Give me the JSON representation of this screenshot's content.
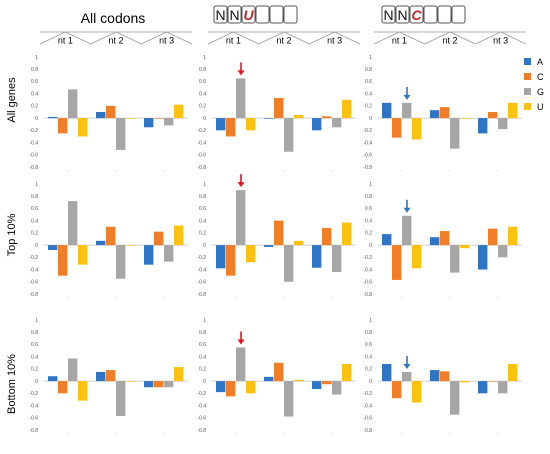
{
  "header": {
    "col1_title": "All codons",
    "col2_codon": [
      "N",
      "N",
      "U",
      "",
      "",
      ""
    ],
    "col3_codon": [
      "N",
      "N",
      "C",
      "",
      "",
      ""
    ]
  },
  "nt_labels": [
    "nt 1",
    "nt 2",
    "nt 3"
  ],
  "row_labels": [
    "All genes",
    "Top 10%",
    "Bottom 10%"
  ],
  "y_ticks": [
    "1",
    "0.8",
    "0.6",
    "0.4",
    "0.2",
    "0",
    "-0.2",
    "-0.4",
    "-0.6",
    "-0.8"
  ],
  "legend": [
    {
      "label": "A",
      "color": "#2e75c6"
    },
    {
      "label": "C",
      "color": "#f27d27"
    },
    {
      "label": "G",
      "color": "#a6a6a6"
    },
    {
      "label": "U",
      "color": "#fdc10f"
    }
  ],
  "colors": {
    "A": "#2e75c6",
    "C": "#f27d27",
    "G": "#a6a6a6",
    "U": "#fdc10f",
    "arrow_red": "#e0141e",
    "arrow_blue": "#2e75c6"
  },
  "chart_data": {
    "type": "bar",
    "grid_layout": {
      "rows": 3,
      "cols": 3
    },
    "series_names": [
      "A",
      "C",
      "G",
      "U"
    ],
    "categories": [
      "nt 1",
      "nt 2",
      "nt 3"
    ],
    "ylim": [
      -0.8,
      1.0
    ],
    "panels": [
      {
        "row": "All genes",
        "col": "All codons",
        "values": [
          [
            0.02,
            -0.25,
            0.47,
            -0.3
          ],
          [
            0.1,
            0.2,
            -0.52,
            0.0
          ],
          [
            -0.15,
            -0.01,
            -0.12,
            0.22
          ]
        ]
      },
      {
        "row": "All genes",
        "col": "NNU",
        "arrow": {
          "color": "red",
          "nt": 1
        },
        "values": [
          [
            -0.2,
            -0.3,
            0.65,
            -0.2
          ],
          [
            -0.01,
            0.33,
            -0.55,
            0.05
          ],
          [
            -0.2,
            0.03,
            -0.15,
            0.3
          ]
        ]
      },
      {
        "row": "All genes",
        "col": "NNC",
        "arrow": {
          "color": "blue",
          "nt": 1
        },
        "values": [
          [
            0.25,
            -0.32,
            0.25,
            -0.35
          ],
          [
            0.13,
            0.18,
            -0.5,
            0.0
          ],
          [
            -0.25,
            0.1,
            -0.18,
            0.25
          ]
        ]
      },
      {
        "row": "Top 10%",
        "col": "All codons",
        "values": [
          [
            -0.08,
            -0.5,
            0.72,
            -0.32
          ],
          [
            0.07,
            0.3,
            -0.55,
            0.0
          ],
          [
            -0.32,
            0.22,
            -0.27,
            0.32
          ]
        ]
      },
      {
        "row": "Top 10%",
        "col": "NNU",
        "arrow": {
          "color": "red",
          "nt": 1
        },
        "values": [
          [
            -0.38,
            -0.5,
            0.9,
            -0.28
          ],
          [
            -0.03,
            0.4,
            -0.6,
            0.07
          ],
          [
            -0.37,
            0.28,
            -0.44,
            0.37
          ]
        ]
      },
      {
        "row": "Top 10%",
        "col": "NNC",
        "arrow": {
          "color": "blue",
          "nt": 1
        },
        "values": [
          [
            0.18,
            -0.57,
            0.48,
            -0.38
          ],
          [
            0.13,
            0.23,
            -0.45,
            -0.05
          ],
          [
            -0.4,
            0.27,
            -0.2,
            0.3
          ]
        ]
      },
      {
        "row": "Bottom 10%",
        "col": "All codons",
        "values": [
          [
            0.08,
            -0.2,
            0.37,
            -0.32
          ],
          [
            0.15,
            0.18,
            -0.57,
            0.0
          ],
          [
            -0.1,
            -0.1,
            -0.1,
            0.23
          ]
        ]
      },
      {
        "row": "Bottom 10%",
        "col": "NNU",
        "arrow": {
          "color": "red",
          "nt": 1
        },
        "values": [
          [
            -0.18,
            -0.25,
            0.55,
            -0.2
          ],
          [
            0.07,
            0.3,
            -0.58,
            0.02
          ],
          [
            -0.13,
            -0.05,
            -0.22,
            0.28
          ]
        ]
      },
      {
        "row": "Bottom 10%",
        "col": "NNC",
        "arrow": {
          "color": "blue",
          "nt": 1
        },
        "values": [
          [
            0.28,
            -0.28,
            0.15,
            -0.35
          ],
          [
            0.18,
            0.16,
            -0.55,
            -0.02
          ],
          [
            -0.2,
            0.0,
            -0.2,
            0.28
          ]
        ]
      }
    ]
  }
}
